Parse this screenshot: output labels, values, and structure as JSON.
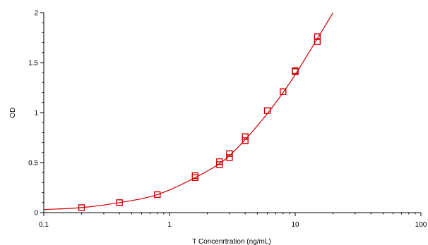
{
  "chart_data": {
    "type": "scatter",
    "title": "",
    "xlabel": "T Concenrtration (ng/mL)",
    "ylabel": "OD",
    "x_scale": "log",
    "xlim": [
      0.1,
      100
    ],
    "ylim": [
      0,
      2
    ],
    "x_ticks": [
      0.1,
      1,
      10,
      100
    ],
    "x_tick_labels": [
      "0.1",
      "1",
      "10",
      "100"
    ],
    "y_ticks": [
      0,
      0.5,
      1,
      1.5,
      2
    ],
    "y_tick_labels": [
      "0",
      "0.5",
      "1",
      "1.5",
      "2"
    ],
    "grid": false,
    "legend": "none",
    "color": "#cc0000",
    "series": [
      {
        "marker": "square",
        "points": [
          {
            "x": 0.2,
            "y": 0.05
          },
          {
            "x": 0.4,
            "y": 0.1
          },
          {
            "x": 0.8,
            "y": 0.18
          },
          {
            "x": 1.6,
            "y": 0.35
          },
          {
            "x": 1.6,
            "y": 0.37
          },
          {
            "x": 2.5,
            "y": 0.48
          },
          {
            "x": 2.5,
            "y": 0.51
          },
          {
            "x": 3,
            "y": 0.55
          },
          {
            "x": 3,
            "y": 0.59
          },
          {
            "x": 4,
            "y": 0.72
          },
          {
            "x": 4,
            "y": 0.76
          },
          {
            "x": 6,
            "y": 1.02
          },
          {
            "x": 8,
            "y": 1.21
          },
          {
            "x": 10,
            "y": 1.41
          },
          {
            "x": 10,
            "y": 1.42
          },
          {
            "x": 15,
            "y": 1.71
          },
          {
            "x": 15,
            "y": 1.76
          }
        ]
      },
      {
        "type": "line",
        "points": [
          {
            "x": 0.1,
            "y": 0.03
          },
          {
            "x": 0.2,
            "y": 0.05
          },
          {
            "x": 0.4,
            "y": 0.1
          },
          {
            "x": 0.8,
            "y": 0.18
          },
          {
            "x": 1.6,
            "y": 0.35
          },
          {
            "x": 2.5,
            "y": 0.49
          },
          {
            "x": 3,
            "y": 0.57
          },
          {
            "x": 4,
            "y": 0.73
          },
          {
            "x": 6,
            "y": 0.99
          },
          {
            "x": 8,
            "y": 1.2
          },
          {
            "x": 10,
            "y": 1.38
          },
          {
            "x": 15,
            "y": 1.74
          },
          {
            "x": 20,
            "y": 2.0
          }
        ]
      }
    ]
  }
}
